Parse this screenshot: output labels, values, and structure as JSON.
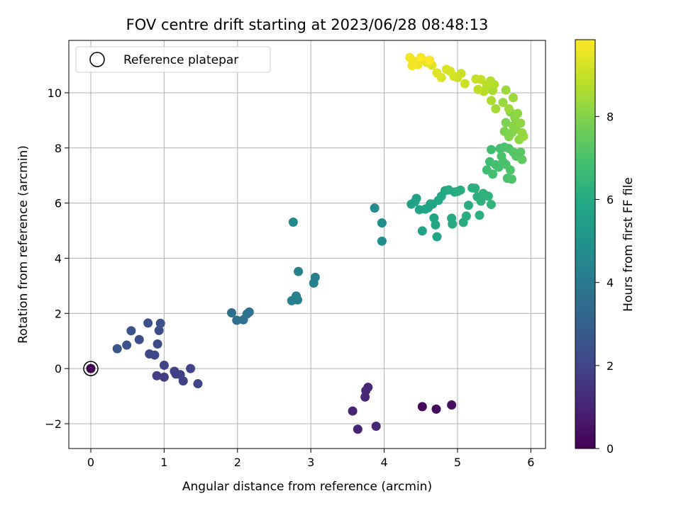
{
  "chart_data": {
    "type": "scatter",
    "title": "FOV centre drift starting at 2023/06/28 08:48:13",
    "xlabel": "Angular distance from reference (arcmin)",
    "ylabel": "Rotation from reference (arcmin)",
    "xlim": [
      -0.3,
      6.2
    ],
    "ylim": [
      -2.9,
      11.9
    ],
    "xticks": [
      0,
      1,
      2,
      3,
      4,
      5,
      6
    ],
    "yticks": [
      -2,
      0,
      2,
      4,
      6,
      8,
      10
    ],
    "grid": true,
    "legend": {
      "position": "top-left",
      "entries": [
        "Reference platepar"
      ]
    },
    "reference_point": {
      "x": 0,
      "y": 0
    },
    "colorbar": {
      "label": "Hours from first FF file",
      "colormap": "viridis",
      "range": [
        0,
        9.85
      ],
      "ticks": [
        0,
        2,
        4,
        6,
        8
      ]
    },
    "points": [
      {
        "x": 0.0,
        "y": 0.0,
        "c": 0.0
      },
      {
        "x": 4.52,
        "y": -1.38,
        "c": 0.2
      },
      {
        "x": 4.71,
        "y": -1.47,
        "c": 0.3
      },
      {
        "x": 4.92,
        "y": -1.32,
        "c": 0.4
      },
      {
        "x": 3.57,
        "y": -1.54,
        "c": 1.0
      },
      {
        "x": 3.64,
        "y": -2.2,
        "c": 1.0
      },
      {
        "x": 3.74,
        "y": -1.03,
        "c": 1.1
      },
      {
        "x": 3.75,
        "y": -0.8,
        "c": 1.1
      },
      {
        "x": 3.78,
        "y": -0.68,
        "c": 1.1
      },
      {
        "x": 3.89,
        "y": -2.09,
        "c": 1.1
      },
      {
        "x": 0.9,
        "y": -0.26,
        "c": 1.8
      },
      {
        "x": 1.0,
        "y": -0.31,
        "c": 1.8
      },
      {
        "x": 1.16,
        "y": -0.2,
        "c": 1.9
      },
      {
        "x": 1.14,
        "y": -0.1,
        "c": 1.9
      },
      {
        "x": 1.22,
        "y": -0.22,
        "c": 1.9
      },
      {
        "x": 1.26,
        "y": -0.45,
        "c": 1.9
      },
      {
        "x": 1.0,
        "y": 0.12,
        "c": 2.0
      },
      {
        "x": 1.36,
        "y": 0.0,
        "c": 2.0
      },
      {
        "x": 1.46,
        "y": -0.55,
        "c": 2.0
      },
      {
        "x": 0.8,
        "y": 0.53,
        "c": 2.1
      },
      {
        "x": 0.87,
        "y": 0.49,
        "c": 2.1
      },
      {
        "x": 0.91,
        "y": 0.89,
        "c": 2.2
      },
      {
        "x": 0.66,
        "y": 1.05,
        "c": 2.3
      },
      {
        "x": 0.93,
        "y": 1.38,
        "c": 2.3
      },
      {
        "x": 0.95,
        "y": 1.64,
        "c": 2.4
      },
      {
        "x": 0.78,
        "y": 1.65,
        "c": 2.4
      },
      {
        "x": 0.55,
        "y": 1.37,
        "c": 2.5
      },
      {
        "x": 0.49,
        "y": 0.85,
        "c": 2.5
      },
      {
        "x": 0.36,
        "y": 0.72,
        "c": 2.6
      },
      {
        "x": 1.92,
        "y": 2.02,
        "c": 3.6
      },
      {
        "x": 1.99,
        "y": 1.75,
        "c": 3.6
      },
      {
        "x": 2.08,
        "y": 1.77,
        "c": 3.7
      },
      {
        "x": 2.13,
        "y": 1.98,
        "c": 3.7
      },
      {
        "x": 2.16,
        "y": 2.05,
        "c": 3.7
      },
      {
        "x": 2.74,
        "y": 2.46,
        "c": 4.2
      },
      {
        "x": 2.8,
        "y": 2.63,
        "c": 4.2
      },
      {
        "x": 2.82,
        "y": 2.49,
        "c": 4.3
      },
      {
        "x": 2.83,
        "y": 3.52,
        "c": 4.3
      },
      {
        "x": 3.04,
        "y": 3.1,
        "c": 4.3
      },
      {
        "x": 3.06,
        "y": 3.31,
        "c": 4.3
      },
      {
        "x": 2.76,
        "y": 5.31,
        "c": 4.6
      },
      {
        "x": 3.87,
        "y": 5.82,
        "c": 4.7
      },
      {
        "x": 3.97,
        "y": 5.28,
        "c": 4.8
      },
      {
        "x": 3.97,
        "y": 4.62,
        "c": 4.8
      },
      {
        "x": 4.37,
        "y": 5.96,
        "c": 5.6
      },
      {
        "x": 4.42,
        "y": 6.05,
        "c": 5.6
      },
      {
        "x": 4.44,
        "y": 6.17,
        "c": 5.6
      },
      {
        "x": 4.48,
        "y": 5.76,
        "c": 5.7
      },
      {
        "x": 4.52,
        "y": 4.99,
        "c": 5.7
      },
      {
        "x": 4.56,
        "y": 5.78,
        "c": 5.7
      },
      {
        "x": 4.6,
        "y": 5.83,
        "c": 5.7
      },
      {
        "x": 4.63,
        "y": 5.97,
        "c": 5.8
      },
      {
        "x": 4.66,
        "y": 5.96,
        "c": 5.8
      },
      {
        "x": 4.68,
        "y": 5.46,
        "c": 5.8
      },
      {
        "x": 4.7,
        "y": 5.21,
        "c": 5.8
      },
      {
        "x": 4.72,
        "y": 4.78,
        "c": 5.8
      },
      {
        "x": 4.74,
        "y": 6.1,
        "c": 5.9
      },
      {
        "x": 4.78,
        "y": 6.25,
        "c": 5.9
      },
      {
        "x": 4.83,
        "y": 6.45,
        "c": 5.9
      },
      {
        "x": 4.88,
        "y": 6.48,
        "c": 6.0
      },
      {
        "x": 4.92,
        "y": 5.45,
        "c": 6.0
      },
      {
        "x": 4.93,
        "y": 5.24,
        "c": 6.0
      },
      {
        "x": 4.96,
        "y": 6.4,
        "c": 6.0
      },
      {
        "x": 5.0,
        "y": 6.42,
        "c": 6.1
      },
      {
        "x": 5.04,
        "y": 6.47,
        "c": 6.1
      },
      {
        "x": 5.08,
        "y": 5.3,
        "c": 6.1
      },
      {
        "x": 5.12,
        "y": 5.53,
        "c": 6.1
      },
      {
        "x": 5.15,
        "y": 5.92,
        "c": 6.1
      },
      {
        "x": 5.2,
        "y": 6.55,
        "c": 6.2
      },
      {
        "x": 5.24,
        "y": 6.54,
        "c": 6.2
      },
      {
        "x": 5.27,
        "y": 6.23,
        "c": 6.2
      },
      {
        "x": 5.3,
        "y": 5.56,
        "c": 6.2
      },
      {
        "x": 5.32,
        "y": 6.07,
        "c": 6.3
      },
      {
        "x": 5.35,
        "y": 6.35,
        "c": 6.3
      },
      {
        "x": 5.38,
        "y": 6.28,
        "c": 6.3
      },
      {
        "x": 5.42,
        "y": 6.25,
        "c": 6.3
      },
      {
        "x": 5.46,
        "y": 5.95,
        "c": 6.4
      },
      {
        "x": 5.4,
        "y": 7.2,
        "c": 6.8
      },
      {
        "x": 5.44,
        "y": 7.5,
        "c": 6.8
      },
      {
        "x": 5.46,
        "y": 7.94,
        "c": 6.8
      },
      {
        "x": 5.48,
        "y": 7.05,
        "c": 6.9
      },
      {
        "x": 5.52,
        "y": 7.39,
        "c": 6.9
      },
      {
        "x": 5.56,
        "y": 7.3,
        "c": 6.9
      },
      {
        "x": 5.58,
        "y": 7.98,
        "c": 6.9
      },
      {
        "x": 5.6,
        "y": 7.7,
        "c": 7.0
      },
      {
        "x": 5.62,
        "y": 7.5,
        "c": 7.0
      },
      {
        "x": 5.64,
        "y": 8.03,
        "c": 7.0
      },
      {
        "x": 5.66,
        "y": 7.4,
        "c": 7.0
      },
      {
        "x": 5.68,
        "y": 6.9,
        "c": 7.0
      },
      {
        "x": 5.7,
        "y": 7.98,
        "c": 7.1
      },
      {
        "x": 5.72,
        "y": 7.2,
        "c": 7.1
      },
      {
        "x": 5.74,
        "y": 6.87,
        "c": 7.1
      },
      {
        "x": 5.76,
        "y": 7.85,
        "c": 7.2
      },
      {
        "x": 5.8,
        "y": 7.7,
        "c": 7.2
      },
      {
        "x": 5.84,
        "y": 7.75,
        "c": 7.3
      },
      {
        "x": 5.86,
        "y": 7.85,
        "c": 7.3
      },
      {
        "x": 5.88,
        "y": 7.58,
        "c": 7.4
      },
      {
        "x": 5.64,
        "y": 8.6,
        "c": 7.9
      },
      {
        "x": 5.66,
        "y": 8.92,
        "c": 7.9
      },
      {
        "x": 5.7,
        "y": 8.41,
        "c": 8.0
      },
      {
        "x": 5.72,
        "y": 9.3,
        "c": 8.0
      },
      {
        "x": 5.74,
        "y": 8.55,
        "c": 8.0
      },
      {
        "x": 5.76,
        "y": 8.8,
        "c": 8.1
      },
      {
        "x": 5.78,
        "y": 9.1,
        "c": 8.1
      },
      {
        "x": 5.8,
        "y": 8.68,
        "c": 8.1
      },
      {
        "x": 5.82,
        "y": 9.25,
        "c": 8.2
      },
      {
        "x": 5.84,
        "y": 8.3,
        "c": 8.2
      },
      {
        "x": 5.86,
        "y": 8.9,
        "c": 8.2
      },
      {
        "x": 5.88,
        "y": 8.55,
        "c": 8.3
      },
      {
        "x": 5.9,
        "y": 8.42,
        "c": 8.3
      },
      {
        "x": 5.62,
        "y": 9.65,
        "c": 8.3
      },
      {
        "x": 5.66,
        "y": 10.1,
        "c": 8.4
      },
      {
        "x": 5.7,
        "y": 9.42,
        "c": 8.4
      },
      {
        "x": 5.76,
        "y": 9.82,
        "c": 8.4
      },
      {
        "x": 5.52,
        "y": 9.42,
        "c": 8.5
      },
      {
        "x": 5.46,
        "y": 9.72,
        "c": 8.6
      },
      {
        "x": 5.48,
        "y": 10.08,
        "c": 8.6
      },
      {
        "x": 5.5,
        "y": 10.3,
        "c": 8.7
      },
      {
        "x": 5.45,
        "y": 10.43,
        "c": 8.7
      },
      {
        "x": 5.4,
        "y": 10.28,
        "c": 8.8
      },
      {
        "x": 5.36,
        "y": 10.05,
        "c": 8.8
      },
      {
        "x": 5.32,
        "y": 10.48,
        "c": 8.9
      },
      {
        "x": 5.28,
        "y": 10.12,
        "c": 8.9
      },
      {
        "x": 5.25,
        "y": 10.5,
        "c": 9.0
      },
      {
        "x": 5.1,
        "y": 10.33,
        "c": 9.1
      },
      {
        "x": 5.05,
        "y": 10.7,
        "c": 9.1
      },
      {
        "x": 5.0,
        "y": 10.55,
        "c": 9.1
      },
      {
        "x": 4.95,
        "y": 10.6,
        "c": 9.2
      },
      {
        "x": 4.9,
        "y": 10.78,
        "c": 9.2
      },
      {
        "x": 4.85,
        "y": 10.85,
        "c": 9.3
      },
      {
        "x": 4.78,
        "y": 10.55,
        "c": 9.3
      },
      {
        "x": 4.72,
        "y": 10.72,
        "c": 9.4
      },
      {
        "x": 4.65,
        "y": 11.0,
        "c": 9.4
      },
      {
        "x": 4.58,
        "y": 11.1,
        "c": 9.5
      },
      {
        "x": 4.52,
        "y": 11.2,
        "c": 9.5
      },
      {
        "x": 4.46,
        "y": 11.02,
        "c": 9.6
      },
      {
        "x": 4.4,
        "y": 11.15,
        "c": 9.6
      },
      {
        "x": 4.35,
        "y": 11.28,
        "c": 9.7
      },
      {
        "x": 4.38,
        "y": 10.98,
        "c": 9.7
      },
      {
        "x": 4.5,
        "y": 11.28,
        "c": 9.8
      },
      {
        "x": 4.62,
        "y": 11.18,
        "c": 9.8
      }
    ]
  }
}
